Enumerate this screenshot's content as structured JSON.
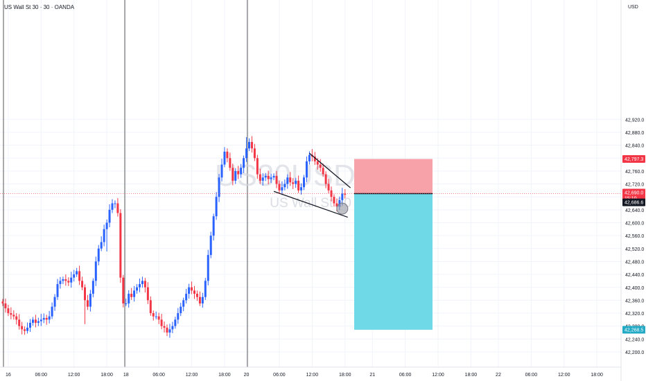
{
  "header": {
    "symbol_line": "US Wall St 30 · 30 · OANDA",
    "currency": "USD"
  },
  "watermark": {
    "ticker": "US30USD, 30",
    "name": "US Wall St 30"
  },
  "colors": {
    "up": "#2962ff",
    "down": "#f23645",
    "stop_zone": "#f7a1a9",
    "target_zone": "#6fd9e8",
    "grid": "#f0f3fa",
    "session_line": "#555555",
    "stop_tag": "#f23645",
    "price_tag": "#f23645",
    "last_tag": "#131722",
    "target_tag": "#22a9c4"
  },
  "price_tags": {
    "stop": {
      "value": 42797.3,
      "label": "42,797.3"
    },
    "entry": {
      "value": 42690.0,
      "label": "42,690.0",
      "countdown": "15:10"
    },
    "last": {
      "value": 42686.6,
      "label": "42,686.6"
    },
    "target": {
      "value": 42268.5,
      "label": "42,268.5"
    }
  },
  "chart_data": {
    "type": "candlestick",
    "symbol": "US30USD",
    "timeframe": "30",
    "title": "US Wall St 30 · 30 · OANDA",
    "ylim": [
      42175,
      42980
    ],
    "y_ticks": [
      42200,
      42240,
      42280,
      42320,
      42360,
      42400,
      42440,
      42480,
      42520,
      42560,
      42600,
      42640,
      42680,
      42720,
      42760,
      42800,
      42840,
      42880,
      42920
    ],
    "y_tick_labels": [
      "42,200.0",
      "42,240.0",
      "42,280.0",
      "42,320.0",
      "42,360.0",
      "42,400.0",
      "42,440.0",
      "42,480.0",
      "42,520.0",
      "42,560.0",
      "42,600.0",
      "42,640.0",
      "42,680.0",
      "42,720.0",
      "42,760.0",
      "42,800.0",
      "42,840.0",
      "42,880.0",
      "42,920.0"
    ],
    "x_ticks": [
      {
        "bar": 2,
        "label": "16"
      },
      {
        "bar": 14,
        "label": "06:00"
      },
      {
        "bar": 26,
        "label": "12:00"
      },
      {
        "bar": 38,
        "label": "18:00"
      },
      {
        "bar": 45,
        "label": "18"
      },
      {
        "bar": 57,
        "label": "06:00"
      },
      {
        "bar": 69,
        "label": "12:00"
      },
      {
        "bar": 81,
        "label": "18:00"
      },
      {
        "bar": 89,
        "label": "20"
      },
      {
        "bar": 101,
        "label": "06:00"
      },
      {
        "bar": 113,
        "label": "12:00"
      },
      {
        "bar": 125,
        "label": "18:00"
      },
      {
        "bar": 135,
        "label": "21"
      },
      {
        "bar": 147,
        "label": "06:00"
      },
      {
        "bar": 159,
        "label": "12:00"
      },
      {
        "bar": 171,
        "label": "18:00"
      },
      {
        "bar": 181,
        "label": "22"
      },
      {
        "bar": 193,
        "label": "06:00"
      },
      {
        "bar": 205,
        "label": "12:00"
      },
      {
        "bar": 217,
        "label": "18:00"
      }
    ],
    "session_breaks": [
      1,
      44,
      88
    ],
    "candles_close": [
      42350,
      42335,
      42320,
      42315,
      42310,
      42300,
      42280,
      42270,
      42265,
      42275,
      42290,
      42300,
      42290,
      42295,
      42300,
      42305,
      42300,
      42310,
      42340,
      42370,
      42410,
      42420,
      42425,
      42420,
      42415,
      42430,
      42440,
      42450,
      42420,
      42400,
      42360,
      42340,
      42380,
      42420,
      42480,
      42520,
      42540,
      42580,
      42600,
      42640,
      42660,
      42660,
      42630,
      42430,
      42350,
      42350,
      42380,
      42370,
      42390,
      42400,
      42410,
      42420,
      42400,
      42360,
      42320,
      42310,
      42310,
      42300,
      42280,
      42275,
      42260,
      42270,
      42280,
      42300,
      42320,
      42340,
      42360,
      42380,
      42400,
      42390,
      42380,
      42370,
      42350,
      42370,
      42420,
      42500,
      42560,
      42620,
      42680,
      42740,
      42780,
      42820,
      42800,
      42770,
      42730,
      42760,
      42750,
      42770,
      42800,
      42830,
      42850,
      42830,
      42800,
      42750,
      42730,
      42740,
      42745,
      42735,
      42740,
      42745,
      42720,
      42700,
      42710,
      42720,
      42740,
      42725,
      42720,
      42730,
      42700,
      42710,
      42740,
      42790,
      42810,
      42805,
      42790,
      42780,
      42770,
      42750,
      42720,
      42700,
      42680,
      42660,
      42650,
      42670,
      42690,
      42687
    ],
    "candles": "OHLC per 30-minute bar; closes listed in candles_close",
    "annotations": [
      {
        "type": "trendline",
        "from": {
          "bar": 112,
          "price": 42815
        },
        "to": {
          "bar": 127,
          "price": 42708
        }
      },
      {
        "type": "trendline",
        "from": {
          "bar": 99,
          "price": 42697
        },
        "to": {
          "bar": 126,
          "price": 42617
        }
      },
      {
        "type": "short_position",
        "from_bar": 127,
        "to_bar": 155,
        "entry": 42690.0,
        "stop": 42797.3,
        "target": 42268.5
      },
      {
        "type": "circle_marker",
        "bar": 123,
        "price": 42648
      }
    ]
  }
}
